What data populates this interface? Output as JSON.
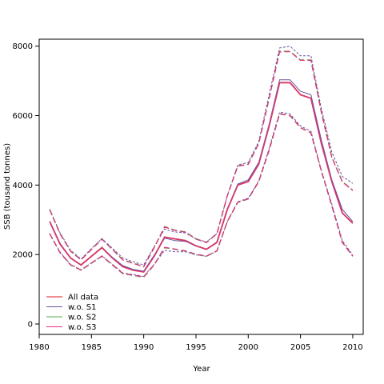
{
  "chart_data": {
    "type": "line",
    "title": "",
    "xlabel": "Year",
    "ylabel": "SSB (tousand tonnes)",
    "xlim": [
      1980,
      2011
    ],
    "ylim": [
      -300,
      8200
    ],
    "xticks": [
      1980,
      1985,
      1990,
      1995,
      2000,
      2005,
      2010
    ],
    "yticks": [
      0,
      2000,
      4000,
      6000,
      8000
    ],
    "grid": false,
    "legend_position": "bottom-left",
    "x": [
      1981,
      1982,
      1983,
      1984,
      1985,
      1986,
      1987,
      1988,
      1989,
      1990,
      1991,
      1992,
      1993,
      1994,
      1995,
      1996,
      1997,
      1998,
      1999,
      2000,
      2001,
      2002,
      2003,
      2004,
      2005,
      2006,
      2007,
      2008,
      2009,
      2010
    ],
    "series": [
      {
        "name": "All data",
        "color": "#e41a1c",
        "estimate": [
          2950,
          2300,
          1900,
          1700,
          1950,
          2200,
          1900,
          1650,
          1550,
          1500,
          1950,
          2500,
          2450,
          2400,
          2250,
          2150,
          2350,
          3300,
          4000,
          4100,
          4600,
          5700,
          6950,
          6950,
          6600,
          6500,
          5200,
          4100,
          3200,
          2900
        ],
        "upper": [
          3300,
          2600,
          2100,
          1850,
          2150,
          2450,
          2150,
          1850,
          1750,
          1650,
          2200,
          2800,
          2700,
          2650,
          2450,
          2350,
          2600,
          3700,
          4550,
          4600,
          5200,
          6500,
          7850,
          7850,
          7600,
          7600,
          6100,
          4800,
          4100,
          3850
        ],
        "lower": [
          2600,
          2050,
          1700,
          1550,
          1750,
          1950,
          1700,
          1450,
          1400,
          1350,
          1700,
          2200,
          2150,
          2100,
          2000,
          1950,
          2100,
          2950,
          3500,
          3600,
          4100,
          5000,
          6050,
          6000,
          5650,
          5500,
          4400,
          3400,
          2350,
          1950
        ]
      },
      {
        "name": "w.o. S1",
        "color": "#6a51a3",
        "estimate": [
          2950,
          2320,
          1900,
          1700,
          1950,
          2200,
          1920,
          1680,
          1570,
          1520,
          1980,
          2470,
          2400,
          2380,
          2240,
          2150,
          2350,
          3300,
          4030,
          4150,
          4650,
          5750,
          7030,
          7030,
          6700,
          6600,
          5300,
          4150,
          3300,
          2950
        ],
        "upper": [
          3300,
          2620,
          2120,
          1870,
          2170,
          2460,
          2180,
          1900,
          1790,
          1700,
          2230,
          2730,
          2650,
          2620,
          2450,
          2360,
          2600,
          3700,
          4580,
          4650,
          5250,
          6600,
          7950,
          8000,
          7720,
          7720,
          6200,
          4950,
          4250,
          4050
        ],
        "lower": [
          2600,
          2070,
          1710,
          1560,
          1760,
          1960,
          1720,
          1470,
          1420,
          1370,
          1720,
          2120,
          2080,
          2080,
          1990,
          1950,
          2100,
          2950,
          3520,
          3620,
          4120,
          5050,
          6100,
          6050,
          5700,
          5550,
          4420,
          3450,
          2400,
          1980
        ]
      },
      {
        "name": "w.o. S2",
        "color": "#4daf4a",
        "estimate": [
          2950,
          2300,
          1900,
          1700,
          1950,
          2200,
          1900,
          1650,
          1550,
          1500,
          1950,
          2500,
          2450,
          2400,
          2250,
          2150,
          2350,
          3300,
          4000,
          4100,
          4600,
          5700,
          6950,
          6950,
          6600,
          6500,
          5200,
          4100,
          3200,
          2900
        ],
        "upper": [
          3300,
          2600,
          2100,
          1850,
          2150,
          2450,
          2150,
          1850,
          1750,
          1650,
          2200,
          2800,
          2700,
          2650,
          2450,
          2350,
          2600,
          3700,
          4550,
          4600,
          5200,
          6500,
          7850,
          7850,
          7600,
          7600,
          6100,
          4800,
          4100,
          3850
        ],
        "lower": [
          2600,
          2050,
          1700,
          1550,
          1750,
          1950,
          1700,
          1450,
          1400,
          1350,
          1700,
          2200,
          2150,
          2100,
          2000,
          1950,
          2100,
          2950,
          3500,
          3600,
          4100,
          5000,
          6050,
          6000,
          5650,
          5500,
          4400,
          3400,
          2350,
          1950
        ]
      },
      {
        "name": "w.o. S3",
        "color": "#e7298a",
        "estimate": [
          2950,
          2300,
          1900,
          1700,
          1950,
          2200,
          1900,
          1650,
          1550,
          1500,
          1950,
          2500,
          2450,
          2400,
          2250,
          2150,
          2350,
          3300,
          4000,
          4100,
          4600,
          5700,
          6950,
          6950,
          6600,
          6500,
          5200,
          4100,
          3200,
          2900
        ],
        "upper": [
          3280,
          2590,
          2090,
          1840,
          2140,
          2440,
          2140,
          1840,
          1740,
          1640,
          2190,
          2790,
          2690,
          2640,
          2440,
          2340,
          2590,
          3690,
          4540,
          4590,
          5190,
          6490,
          7830,
          7840,
          7590,
          7590,
          6090,
          4790,
          4090,
          3840
        ],
        "lower": [
          2610,
          2060,
          1710,
          1560,
          1760,
          1960,
          1710,
          1460,
          1410,
          1360,
          1710,
          2210,
          2160,
          2110,
          2010,
          1960,
          2110,
          2960,
          3510,
          3610,
          4110,
          5010,
          6060,
          6010,
          5660,
          5510,
          4410,
          3410,
          2360,
          1960
        ]
      }
    ]
  }
}
